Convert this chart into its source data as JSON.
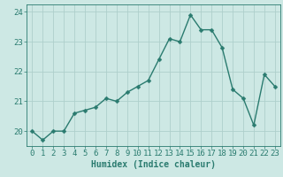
{
  "x": [
    0,
    1,
    2,
    3,
    4,
    5,
    6,
    7,
    8,
    9,
    10,
    11,
    12,
    13,
    14,
    15,
    16,
    17,
    18,
    19,
    20,
    21,
    22,
    23
  ],
  "y": [
    20.0,
    19.7,
    20.0,
    20.0,
    20.6,
    20.7,
    20.8,
    21.1,
    21.0,
    21.3,
    21.5,
    21.7,
    22.4,
    23.1,
    23.0,
    23.9,
    23.4,
    23.4,
    22.8,
    21.4,
    21.1,
    20.2,
    21.9,
    21.5
  ],
  "line_color": "#2a7b6f",
  "marker_color": "#2a7b6f",
  "bg_color": "#cde8e4",
  "grid_color": "#aecfcb",
  "xlabel": "Humidex (Indice chaleur)",
  "ylim": [
    19.5,
    24.25
  ],
  "xlim": [
    -0.5,
    23.5
  ],
  "yticks": [
    20,
    21,
    22,
    23,
    24
  ],
  "xticks": [
    0,
    1,
    2,
    3,
    4,
    5,
    6,
    7,
    8,
    9,
    10,
    11,
    12,
    13,
    14,
    15,
    16,
    17,
    18,
    19,
    20,
    21,
    22,
    23
  ],
  "axis_color": "#2a7b6f",
  "tick_color": "#2a7b6f",
  "label_color": "#2a7b6f",
  "font_size_xlabel": 7,
  "font_size_tick": 6.5,
  "linewidth": 1.0,
  "markersize": 2.5
}
